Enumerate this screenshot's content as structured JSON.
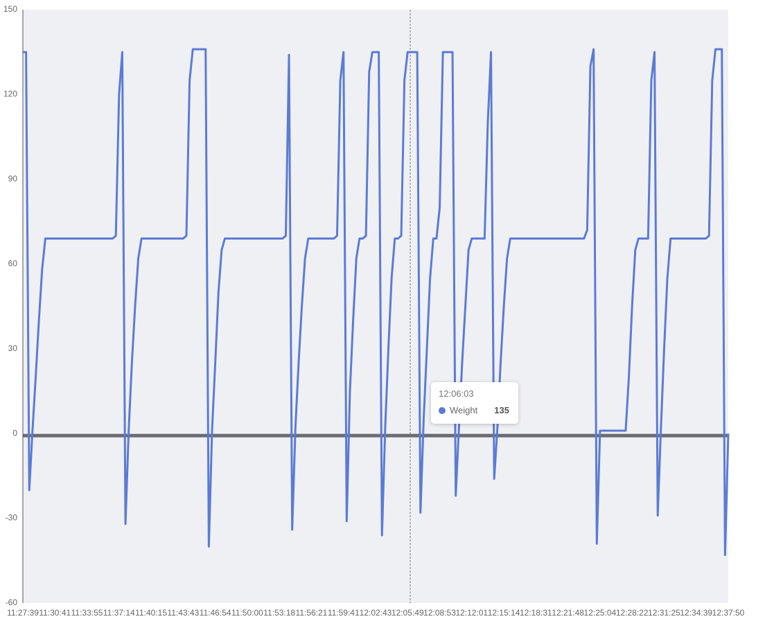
{
  "chart_data": {
    "type": "line",
    "categories": [
      "11:27:39",
      null,
      null,
      null,
      null,
      null,
      null,
      null,
      null,
      null,
      "11:30:41",
      null,
      null,
      null,
      null,
      null,
      null,
      null,
      null,
      null,
      "11:33:55",
      null,
      null,
      null,
      null,
      null,
      null,
      null,
      null,
      null,
      "11:37:14",
      null,
      null,
      null,
      null,
      null,
      null,
      null,
      null,
      null,
      "11:40:15",
      null,
      null,
      null,
      null,
      null,
      null,
      null,
      null,
      null,
      "11:43:43",
      null,
      null,
      null,
      null,
      null,
      null,
      null,
      null,
      null,
      "11:46:54",
      null,
      null,
      null,
      null,
      null,
      null,
      null,
      null,
      null,
      "11:50:00",
      null,
      null,
      null,
      null,
      null,
      null,
      null,
      null,
      null,
      "11:53:18",
      null,
      null,
      null,
      null,
      null,
      null,
      null,
      null,
      null,
      "11:56:21",
      null,
      null,
      null,
      null,
      null,
      null,
      null,
      null,
      null,
      "11:59:41",
      null,
      null,
      null,
      null,
      null,
      null,
      null,
      null,
      null,
      "12:02:43",
      null,
      null,
      null,
      null,
      null,
      null,
      null,
      null,
      null,
      "12:05:49",
      null,
      null,
      null,
      null,
      null,
      null,
      null,
      null,
      null,
      "12:08:53",
      null,
      null,
      null,
      null,
      null,
      null,
      null,
      null,
      null,
      "12:12:01",
      null,
      null,
      null,
      null,
      null,
      null,
      null,
      null,
      null,
      "12:15:14",
      null,
      null,
      null,
      null,
      null,
      null,
      null,
      null,
      null,
      "12:18:31",
      null,
      null,
      null,
      null,
      null,
      null,
      null,
      null,
      null,
      "12:21:48",
      null,
      null,
      null,
      null,
      null,
      null,
      null,
      null,
      null,
      "12:25:04",
      null,
      null,
      null,
      null,
      null,
      null,
      null,
      null,
      null,
      "12:28:22",
      null,
      null,
      null,
      null,
      null,
      null,
      null,
      null,
      null,
      "12:31:25",
      null,
      null,
      null,
      null,
      null,
      null,
      null,
      null,
      null,
      "12:34:39",
      null,
      null,
      null,
      null,
      null,
      null,
      null,
      null,
      null,
      "12:37:50"
    ],
    "series": [
      {
        "name": "Weight",
        "color": "#5b7bd5",
        "values": [
          135,
          135,
          -20,
          1,
          20,
          40,
          58,
          69,
          69,
          69,
          69,
          69,
          69,
          69,
          69,
          69,
          69,
          69,
          69,
          69,
          69,
          69,
          69,
          69,
          69,
          69,
          69,
          69,
          69,
          70,
          120,
          135,
          -32,
          1,
          25,
          45,
          62,
          69,
          69,
          69,
          69,
          69,
          69,
          69,
          69,
          69,
          69,
          69,
          69,
          69,
          69,
          70,
          125,
          136,
          136,
          136,
          136,
          136,
          -40,
          1,
          25,
          50,
          65,
          69,
          69,
          69,
          69,
          69,
          69,
          69,
          69,
          69,
          69,
          69,
          69,
          69,
          69,
          69,
          69,
          69,
          69,
          69,
          70,
          134,
          -34,
          2,
          25,
          45,
          62,
          69,
          69,
          69,
          69,
          69,
          69,
          69,
          69,
          69,
          70,
          125,
          135,
          -31,
          15,
          40,
          62,
          69,
          69,
          70,
          128,
          135,
          135,
          135,
          -36,
          2,
          30,
          55,
          69,
          69,
          70,
          125,
          135,
          135,
          135,
          135,
          -28,
          5,
          30,
          55,
          69,
          69,
          80,
          135,
          135,
          135,
          135,
          -22,
          2,
          25,
          45,
          65,
          69,
          69,
          69,
          69,
          69,
          110,
          135,
          -16,
          2,
          25,
          45,
          62,
          69,
          69,
          69,
          69,
          69,
          69,
          69,
          69,
          69,
          69,
          69,
          69,
          69,
          69,
          69,
          69,
          69,
          69,
          69,
          69,
          69,
          69,
          69,
          69,
          72,
          130,
          136,
          -39,
          1,
          1,
          1,
          1,
          1,
          1,
          1,
          1,
          1,
          20,
          45,
          65,
          69,
          69,
          69,
          69,
          125,
          135,
          -29,
          2,
          30,
          55,
          69,
          69,
          69,
          69,
          69,
          69,
          69,
          69,
          69,
          69,
          69,
          69,
          70,
          125,
          136,
          136,
          136,
          -43,
          0
        ]
      }
    ],
    "ylim": [
      -60,
      150
    ],
    "yticks": [
      -60,
      -30,
      0,
      30,
      60,
      90,
      120,
      150
    ],
    "baseline_color": "#6b6b73",
    "background": "#eff0f3",
    "tooltip": {
      "label": "12:06:03",
      "value": 135
    }
  }
}
